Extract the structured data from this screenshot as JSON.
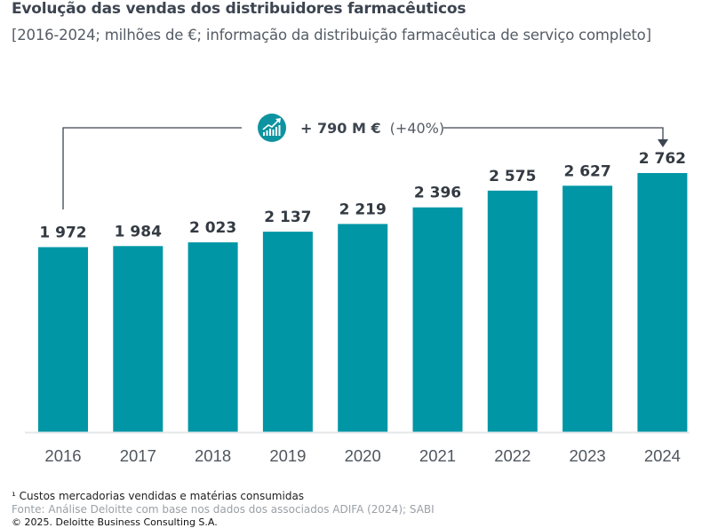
{
  "title": "Evolução das vendas dos distribuidores farmacêuticos",
  "subtitle": "[2016-2024; milhões de €; informação da distribuição farmacêutica de serviço completo]",
  "annotation": {
    "icon": "growth-chart-icon",
    "bold_text": "+ 790 M €",
    "light_text": "(+40%)",
    "from": "2016",
    "to": "2024"
  },
  "footnote": "¹ Custos mercadorias vendidas e matérias consumidas",
  "source": "Fonte: Análise Deloitte com base nos dados dos associados ADIFA (2024); SABI",
  "copyright": "© 2025. Deloitte Business Consulting S.A.",
  "colors": {
    "bar": "#0096a6",
    "baseline": "#e6e7e8",
    "connector": "#3d4551",
    "icon_bg": "#0e93a0"
  },
  "chart_data": {
    "type": "bar",
    "title": "Evolução das vendas dos distribuidores farmacêuticos",
    "subtitle": "[2016-2024; milhões de €; informação da distribuição farmacêutica de serviço completo]",
    "xlabel": "",
    "ylabel": "",
    "categories": [
      "2016",
      "2017",
      "2018",
      "2019",
      "2020",
      "2021",
      "2022",
      "2023",
      "2024"
    ],
    "values": [
      1972,
      1984,
      2023,
      2137,
      2219,
      2396,
      2575,
      2627,
      2762
    ],
    "value_labels": [
      "1 972",
      "1 984",
      "2 023",
      "2 137",
      "2 219",
      "2 396",
      "2 575",
      "2 627",
      "2 762"
    ],
    "ylim": [
      0,
      2762
    ],
    "grid": false,
    "legend": "none",
    "annotations": [
      "+ 790 M € (+40%)"
    ]
  }
}
